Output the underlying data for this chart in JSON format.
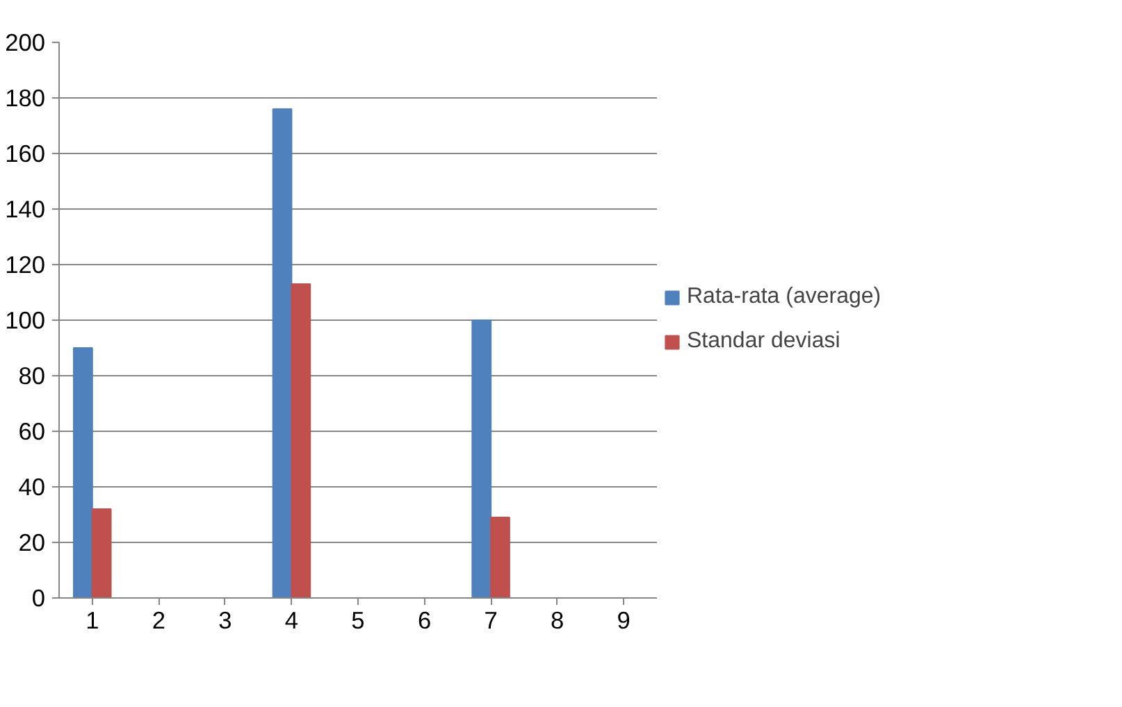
{
  "chart_data": {
    "type": "bar",
    "categories": [
      "1",
      "2",
      "3",
      "4",
      "5",
      "6",
      "7",
      "8",
      "9"
    ],
    "series": [
      {
        "name": "Rata-rata (average)",
        "color": "#4f81bd",
        "values": [
          90,
          0,
          0,
          176,
          0,
          0,
          100,
          0,
          0
        ]
      },
      {
        "name": "Standar deviasi",
        "color": "#c0504d",
        "values": [
          32,
          0,
          0,
          113,
          0,
          0,
          29,
          0,
          0
        ]
      }
    ],
    "ylim": [
      0,
      200
    ],
    "yticks": [
      0,
      20,
      40,
      60,
      80,
      100,
      120,
      140,
      160,
      180,
      200
    ],
    "grid": "y",
    "legend": "right"
  }
}
